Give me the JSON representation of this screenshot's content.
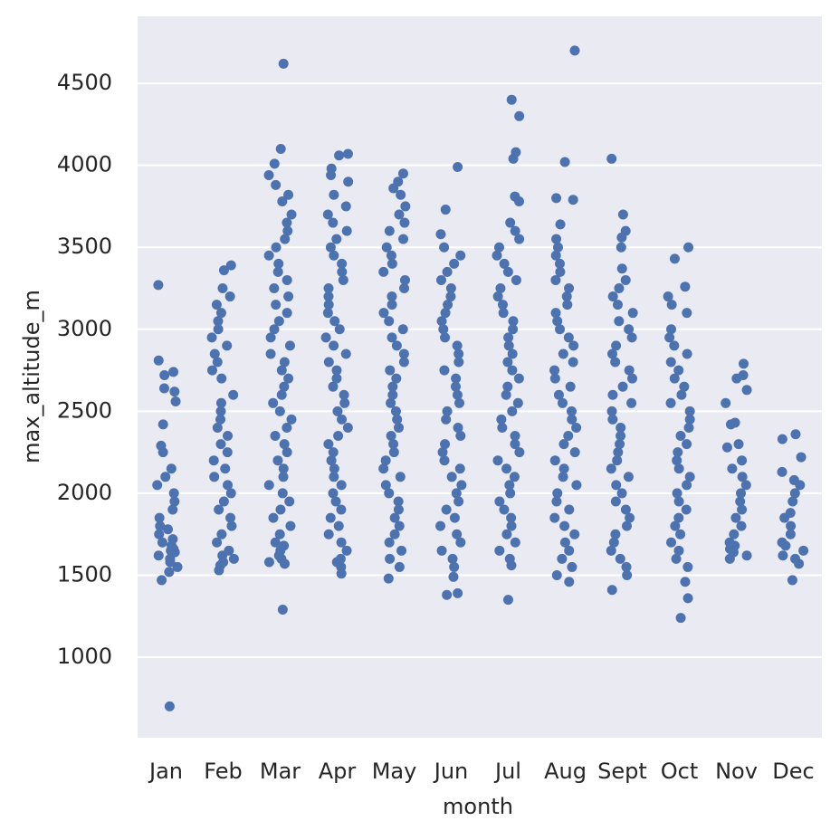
{
  "chart_data": {
    "type": "strip",
    "x_label": "month",
    "y_label": "max_altitude_m",
    "categories": [
      "Jan",
      "Feb",
      "Mar",
      "Apr",
      "May",
      "Jun",
      "Jul",
      "Aug",
      "Sept",
      "Oct",
      "Nov",
      "Dec"
    ],
    "color": "#4c72b0",
    "ylim": [
      509,
      4909
    ],
    "yticks": [
      1000,
      1500,
      2000,
      2500,
      3000,
      3500,
      4000,
      4500
    ],
    "grid": true,
    "values": [
      [
        700,
        1470,
        1520,
        1550,
        1580,
        1600,
        1620,
        1640,
        1650,
        1660,
        1680,
        1700,
        1720,
        1750,
        1780,
        1800,
        1850,
        1900,
        1950,
        2000,
        2050,
        2100,
        2150,
        2250,
        2290,
        2420,
        2560,
        2620,
        2640,
        2720,
        2740,
        2810,
        3270
      ],
      [
        1530,
        1560,
        1580,
        1600,
        1620,
        1650,
        1700,
        1750,
        1800,
        1850,
        1900,
        1950,
        2000,
        2050,
        2100,
        2150,
        2200,
        2250,
        2300,
        2350,
        2400,
        2450,
        2500,
        2550,
        2600,
        2700,
        2750,
        2800,
        2850,
        2900,
        2950,
        3000,
        3050,
        3100,
        3150,
        3200,
        3250,
        3360,
        3390
      ],
      [
        1290,
        1570,
        1580,
        1600,
        1620,
        1650,
        1680,
        1700,
        1750,
        1800,
        1850,
        1900,
        1950,
        2000,
        2050,
        2100,
        2150,
        2200,
        2250,
        2300,
        2350,
        2400,
        2450,
        2500,
        2550,
        2600,
        2650,
        2700,
        2750,
        2800,
        2850,
        2900,
        2950,
        3000,
        3050,
        3100,
        3150,
        3200,
        3250,
        3300,
        3350,
        3400,
        3450,
        3500,
        3550,
        3600,
        3650,
        3700,
        3780,
        3820,
        3880,
        3940,
        4010,
        4100,
        4620
      ],
      [
        1510,
        1550,
        1580,
        1600,
        1650,
        1700,
        1750,
        1800,
        1850,
        1900,
        1950,
        2000,
        2050,
        2100,
        2150,
        2200,
        2250,
        2300,
        2350,
        2400,
        2450,
        2500,
        2550,
        2600,
        2650,
        2700,
        2750,
        2800,
        2850,
        2900,
        2950,
        3000,
        3050,
        3100,
        3150,
        3200,
        3250,
        3300,
        3350,
        3400,
        3450,
        3500,
        3550,
        3600,
        3650,
        3700,
        3750,
        3820,
        3900,
        3940,
        3980,
        4060,
        4070
      ],
      [
        1480,
        1550,
        1600,
        1650,
        1700,
        1750,
        1800,
        1850,
        1900,
        1950,
        2000,
        2050,
        2100,
        2150,
        2200,
        2250,
        2300,
        2350,
        2400,
        2450,
        2500,
        2550,
        2600,
        2650,
        2700,
        2750,
        2800,
        2850,
        2900,
        2950,
        3000,
        3050,
        3100,
        3150,
        3200,
        3250,
        3300,
        3350,
        3400,
        3450,
        3500,
        3550,
        3600,
        3650,
        3700,
        3750,
        3820,
        3860,
        3900,
        3950
      ],
      [
        1380,
        1390,
        1490,
        1550,
        1600,
        1650,
        1700,
        1750,
        1800,
        1850,
        1900,
        1950,
        2000,
        2050,
        2100,
        2150,
        2200,
        2250,
        2300,
        2350,
        2400,
        2450,
        2500,
        2550,
        2600,
        2650,
        2700,
        2750,
        2800,
        2850,
        2900,
        2950,
        3000,
        3050,
        3100,
        3150,
        3200,
        3250,
        3300,
        3350,
        3400,
        3450,
        3500,
        3580,
        3730,
        3990
      ],
      [
        1350,
        1560,
        1600,
        1650,
        1700,
        1750,
        1800,
        1850,
        1900,
        1950,
        2000,
        2050,
        2100,
        2150,
        2200,
        2250,
        2300,
        2350,
        2400,
        2450,
        2500,
        2550,
        2600,
        2650,
        2700,
        2750,
        2800,
        2850,
        2900,
        2950,
        3000,
        3050,
        3100,
        3150,
        3200,
        3250,
        3300,
        3350,
        3400,
        3450,
        3500,
        3550,
        3600,
        3650,
        3780,
        3810,
        4040,
        4080,
        4300,
        4400
      ],
      [
        1460,
        1500,
        1550,
        1600,
        1650,
        1700,
        1750,
        1800,
        1850,
        1900,
        1950,
        2000,
        2050,
        2100,
        2150,
        2200,
        2250,
        2300,
        2350,
        2400,
        2450,
        2500,
        2550,
        2600,
        2650,
        2700,
        2750,
        2800,
        2850,
        2900,
        2950,
        3000,
        3050,
        3100,
        3150,
        3200,
        3250,
        3300,
        3350,
        3400,
        3450,
        3500,
        3550,
        3640,
        3790,
        3800,
        4020,
        4700
      ],
      [
        1410,
        1500,
        1550,
        1600,
        1650,
        1700,
        1750,
        1800,
        1850,
        1900,
        1950,
        2000,
        2050,
        2100,
        2150,
        2200,
        2250,
        2300,
        2350,
        2400,
        2450,
        2500,
        2550,
        2600,
        2650,
        2700,
        2750,
        2800,
        2850,
        2900,
        2950,
        3000,
        3050,
        3100,
        3150,
        3200,
        3250,
        3300,
        3370,
        3500,
        3560,
        3600,
        3700,
        4040
      ],
      [
        1240,
        1360,
        1460,
        1550,
        1600,
        1650,
        1700,
        1750,
        1800,
        1850,
        1900,
        1950,
        2000,
        2050,
        2100,
        2150,
        2200,
        2250,
        2300,
        2350,
        2400,
        2450,
        2500,
        2550,
        2600,
        2650,
        2700,
        2750,
        2800,
        2850,
        2900,
        2950,
        3000,
        3100,
        3150,
        3200,
        3260,
        3430,
        3500
      ],
      [
        1600,
        1620,
        1640,
        1660,
        1680,
        1700,
        1750,
        1800,
        1850,
        1900,
        1950,
        2000,
        2050,
        2100,
        2150,
        2200,
        2280,
        2300,
        2420,
        2430,
        2550,
        2630,
        2700,
        2720,
        2790
      ],
      [
        1470,
        1570,
        1600,
        1620,
        1650,
        1680,
        1700,
        1750,
        1800,
        1850,
        1880,
        1950,
        2000,
        2050,
        2080,
        2130,
        2220,
        2330,
        2360
      ]
    ]
  }
}
